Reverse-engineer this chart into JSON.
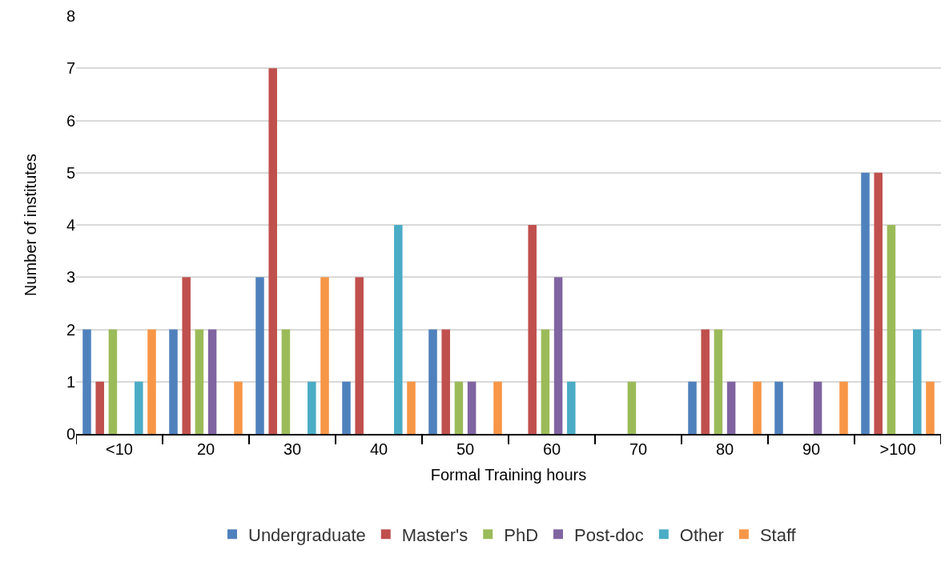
{
  "chart_data": {
    "type": "bar",
    "xlabel": "Formal Training hours",
    "ylabel": "Number of institutes",
    "categories": [
      "<10",
      "20",
      "30",
      "40",
      "50",
      "60",
      "70",
      "80",
      "90",
      ">100"
    ],
    "series": [
      {
        "name": "Undergraduate",
        "color": "#4f81bd",
        "values": [
          2,
          2,
          3,
          1,
          2,
          0,
          0,
          1,
          1,
          5
        ]
      },
      {
        "name": "Master's",
        "color": "#c0504d",
        "values": [
          1,
          3,
          7,
          3,
          2,
          4,
          0,
          2,
          0,
          5
        ]
      },
      {
        "name": "PhD",
        "color": "#9bbb59",
        "values": [
          2,
          2,
          2,
          0,
          1,
          2,
          1,
          2,
          0,
          4
        ]
      },
      {
        "name": "Post-doc",
        "color": "#8064a2",
        "values": [
          0,
          2,
          0,
          0,
          1,
          3,
          0,
          1,
          1,
          0
        ]
      },
      {
        "name": "Other",
        "color": "#4bacc6",
        "values": [
          1,
          0,
          1,
          4,
          0,
          1,
          0,
          0,
          0,
          2
        ]
      },
      {
        "name": "Staff",
        "color": "#f79646",
        "values": [
          2,
          1,
          3,
          1,
          1,
          0,
          0,
          1,
          1,
          1
        ]
      }
    ],
    "ylim": [
      0,
      8
    ],
    "yticks": [
      0,
      1,
      2,
      3,
      4,
      5,
      6,
      7,
      8
    ],
    "grid": "y",
    "legend": "bottom"
  }
}
